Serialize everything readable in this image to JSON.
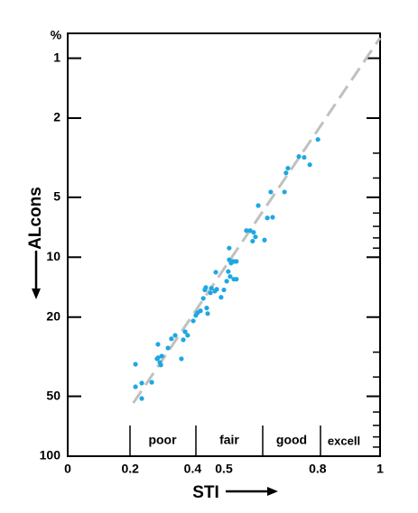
{
  "chart_data": {
    "type": "scatter",
    "xlabel": "STI",
    "ylabel": "ALcons",
    "yunit": "%",
    "xlim": [
      0,
      1
    ],
    "xticks": [
      0,
      0.2,
      0.4,
      0.5,
      0.8,
      1
    ],
    "ylim": [
      0.75,
      100
    ],
    "y_log": true,
    "y_inverted": true,
    "yticks": [
      1,
      2,
      5,
      10,
      20,
      50,
      100
    ],
    "yminor": [
      3,
      4,
      6,
      7,
      8,
      9,
      30,
      40,
      60,
      70,
      80,
      90
    ],
    "band_labels": [
      "poor",
      "fair",
      "good",
      "excell"
    ],
    "trend_line": {
      "color": "#c0c0c0",
      "x": [
        0.21,
        1
      ],
      "y": [
        54,
        0.79
      ]
    },
    "series": [
      {
        "color": "#1ea7e1",
        "x": [
          0.217,
          0.217,
          0.237,
          0.237,
          0.269,
          0.289,
          0.286,
          0.295,
          0.301,
          0.298,
          0.289,
          0.321,
          0.332,
          0.344,
          0.37,
          0.376,
          0.384,
          0.364,
          0.402,
          0.41,
          0.416,
          0.425,
          0.434,
          0.439,
          0.445,
          0.448,
          0.442,
          0.46,
          0.457,
          0.471,
          0.477,
          0.474,
          0.491,
          0.5,
          0.509,
          0.514,
          0.52,
          0.523,
          0.517,
          0.529,
          0.54,
          0.532,
          0.54,
          0.517,
          0.532,
          0.572,
          0.584,
          0.595,
          0.592,
          0.601,
          0.61,
          0.63,
          0.639,
          0.65,
          0.656,
          0.694,
          0.699,
          0.705,
          0.74,
          0.757,
          0.775,
          0.801
        ],
        "values": [
          34.5,
          44.8,
          42.9,
          51.3,
          42.5,
          27.4,
          32.4,
          33.8,
          31.4,
          34.8,
          32.0,
          28.6,
          25.7,
          24.7,
          26.0,
          23.7,
          24.7,
          32.4,
          20.9,
          19.6,
          19.0,
          18.6,
          16.1,
          14.6,
          18.0,
          19.2,
          14.2,
          14.3,
          15.1,
          14.8,
          14.5,
          11.9,
          15.9,
          14.6,
          13.2,
          11.8,
          12.5,
          10.7,
          10.3,
          10.5,
          10.5,
          12.9,
          12.9,
          9.0,
          10.5,
          7.35,
          7.35,
          7.5,
          8.3,
          7.9,
          5.5,
          8.2,
          6.35,
          4.7,
          6.3,
          4.7,
          3.77,
          3.57,
          3.12,
          3.15,
          3.43,
          2.56
        ]
      }
    ]
  }
}
